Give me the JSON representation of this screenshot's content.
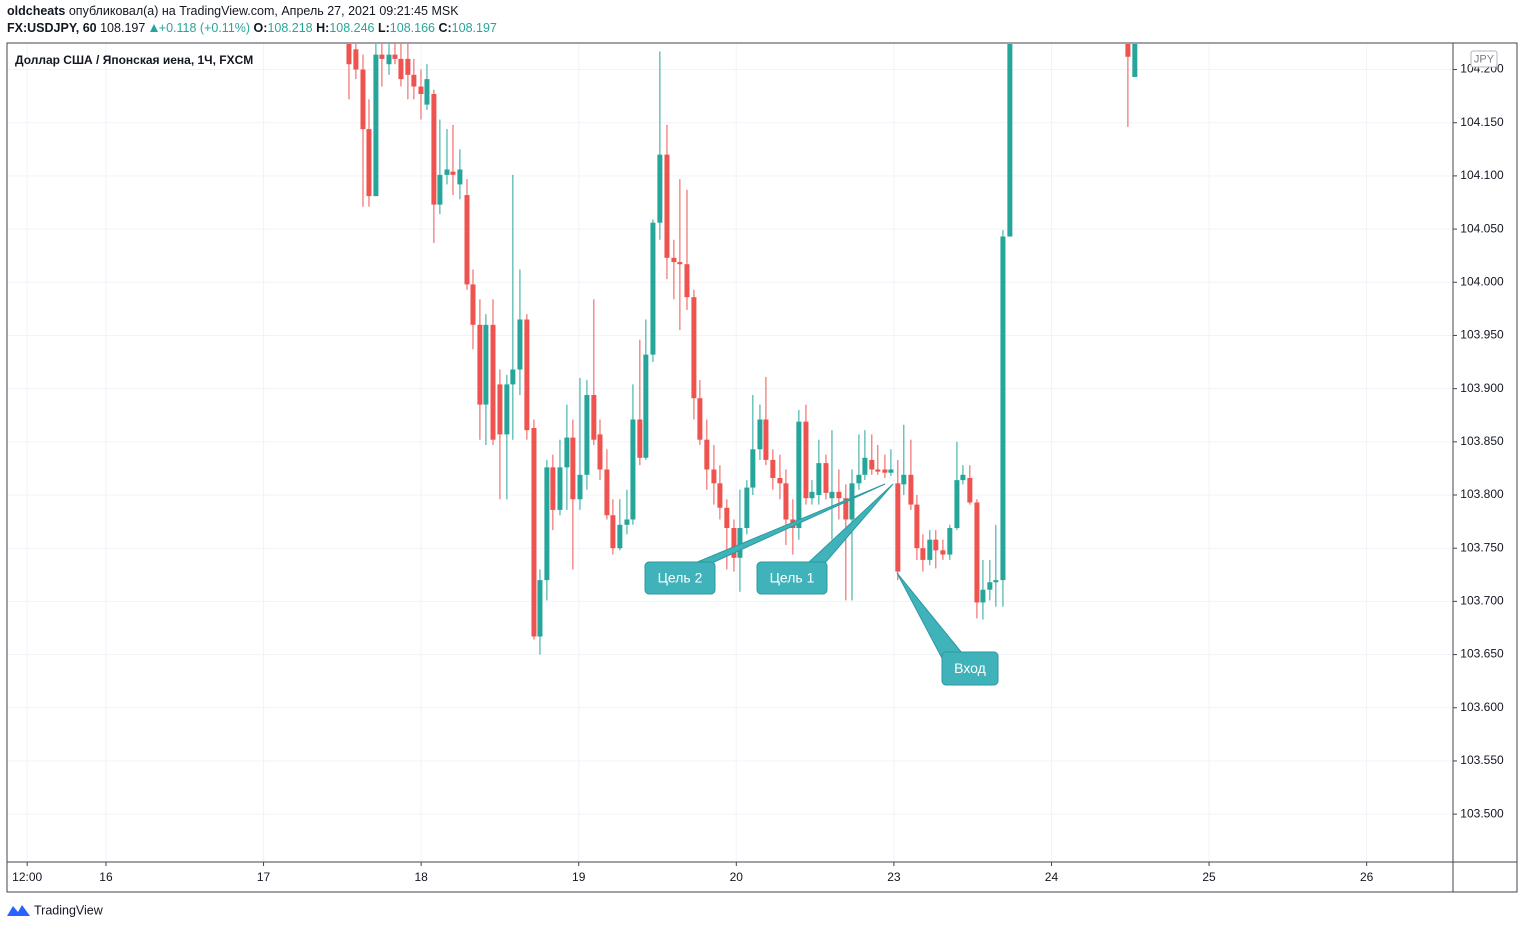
{
  "header": {
    "author": "oldcheats",
    "published": "опубликовал(а) на TradingView.com, Апрель 27, 2021 09:21:45 MSK",
    "symbol": "FX:USDJPY, 60",
    "last": "108.197",
    "change": "+0.118 (+0.11%)",
    "ohlc": [
      {
        "label": "O:",
        "value": "108.218"
      },
      {
        "label": "H:",
        "value": "108.246"
      },
      {
        "label": "L:",
        "value": "108.166"
      },
      {
        "label": "C:",
        "value": "108.197"
      }
    ]
  },
  "chart_data": {
    "type": "candlestick",
    "title": "Доллар США / Японская иена, 1Ч, FXCM",
    "currency": "JPY",
    "up_color": "#26a69a",
    "down_color": "#ef5350",
    "grid": true,
    "xlim": [
      15.372,
      24.548
    ],
    "ylim": [
      103.455,
      104.224
    ],
    "xticks": [
      {
        "value": 15.5,
        "label": "12:00"
      },
      16,
      17,
      18,
      19,
      20,
      {
        "value": 21,
        "label": "23"
      },
      {
        "value": 22,
        "label": "24"
      },
      {
        "value": 23,
        "label": "25"
      },
      {
        "value": 24,
        "label": "26"
      }
    ],
    "yticks": [
      {
        "value": 103.5,
        "label": "103.500"
      },
      {
        "value": 103.55,
        "label": "103.550"
      },
      {
        "value": 103.6,
        "label": "103.600"
      },
      {
        "value": 103.65,
        "label": "103.650"
      },
      {
        "value": 103.7,
        "label": "103.700"
      },
      {
        "value": 103.75,
        "label": "103.750"
      },
      {
        "value": 103.8,
        "label": "103.800"
      },
      {
        "value": 103.85,
        "label": "103.850"
      },
      {
        "value": 103.9,
        "label": "103.900"
      },
      {
        "value": 103.95,
        "label": "103.950"
      },
      {
        "value": 104.0,
        "label": "104.000"
      },
      {
        "value": 104.05,
        "label": "104.050"
      },
      {
        "value": 104.1,
        "label": "104.100"
      },
      {
        "value": 104.15,
        "label": "104.150"
      },
      {
        "value": 104.2,
        "label": "104.200"
      }
    ],
    "x": [
      17.542,
      17.586,
      17.631,
      17.669,
      17.713,
      17.751,
      17.796,
      17.834,
      17.872,
      17.916,
      17.954,
      17.999,
      18.037,
      18.081,
      18.119,
      18.164,
      18.202,
      18.246,
      18.291,
      18.329,
      18.373,
      18.411,
      18.456,
      18.5,
      18.544,
      18.582,
      18.627,
      18.671,
      18.716,
      18.754,
      18.798,
      18.836,
      18.881,
      18.925,
      18.963,
      19.008,
      19.052,
      19.096,
      19.135,
      19.179,
      19.217,
      19.261,
      19.306,
      19.344,
      19.388,
      19.426,
      19.471,
      19.515,
      19.56,
      19.604,
      19.642,
      19.687,
      19.731,
      19.769,
      19.813,
      19.858,
      19.896,
      19.94,
      19.985,
      20.023,
      20.067,
      20.105,
      20.15,
      20.188,
      20.232,
      20.277,
      20.315,
      20.359,
      20.397,
      20.442,
      20.48,
      20.524,
      20.569,
      20.607,
      20.651,
      20.695,
      20.734,
      20.778,
      20.816,
      20.86,
      20.898,
      20.943,
      20.981,
      21.025,
      21.063,
      21.108,
      21.146,
      21.184,
      21.228,
      21.266,
      21.311,
      21.355,
      21.4,
      21.438,
      21.482,
      21.527,
      21.565,
      21.609,
      21.647,
      21.692,
      21.736,
      22.485,
      22.529
    ],
    "open": [
      104.225,
      104.219,
      104.2,
      104.144,
      104.081,
      104.214,
      104.205,
      104.214,
      104.21,
      104.21,
      104.195,
      104.184,
      104.167,
      104.177,
      104.073,
      104.101,
      104.104,
      104.092,
      104.082,
      103.998,
      103.96,
      103.885,
      103.96,
      103.904,
      103.857,
      103.904,
      103.918,
      103.965,
      103.863,
      103.667,
      103.72,
      103.826,
      103.786,
      103.826,
      103.854,
      103.796,
      103.819,
      103.894,
      103.857,
      103.824,
      103.781,
      103.75,
      103.772,
      103.777,
      103.871,
      103.835,
      103.932,
      104.056,
      104.12,
      104.023,
      104.019,
      104.017,
      103.986,
      103.891,
      103.852,
      103.824,
      103.811,
      103.788,
      103.769,
      103.741,
      103.769,
      103.807,
      103.843,
      103.871,
      103.833,
      103.816,
      103.811,
      103.777,
      103.769,
      103.869,
      103.797,
      103.8,
      103.83,
      103.797,
      103.803,
      103.797,
      103.777,
      103.811,
      103.819,
      103.833,
      103.824,
      103.824,
      103.821,
      103.811,
      103.81,
      103.819,
      103.791,
      103.75,
      103.739,
      103.758,
      103.748,
      103.744,
      103.769,
      103.814,
      103.816,
      103.793,
      103.699,
      103.711,
      103.718,
      103.72,
      104.043,
      104.225,
      104.193
    ],
    "high": [
      104.238,
      104.225,
      104.214,
      104.172,
      104.225,
      104.225,
      104.225,
      104.225,
      104.225,
      104.225,
      104.21,
      104.2,
      104.205,
      104.181,
      104.153,
      104.144,
      104.148,
      104.125,
      104.097,
      104.012,
      103.984,
      103.97,
      103.984,
      103.918,
      103.913,
      104.101,
      104.012,
      103.97,
      103.871,
      103.73,
      103.833,
      103.838,
      103.852,
      103.885,
      103.871,
      103.91,
      103.908,
      103.984,
      103.871,
      103.843,
      103.796,
      103.796,
      103.805,
      103.904,
      103.946,
      103.965,
      104.059,
      104.217,
      104.148,
      104.04,
      104.097,
      104.087,
      103.993,
      103.908,
      103.871,
      103.847,
      103.828,
      103.796,
      103.777,
      103.805,
      103.814,
      103.894,
      103.885,
      103.911,
      103.843,
      103.838,
      103.824,
      103.796,
      103.88,
      103.885,
      103.814,
      103.852,
      103.838,
      103.861,
      103.824,
      103.81,
      103.824,
      103.857,
      103.861,
      103.857,
      103.847,
      103.838,
      103.843,
      103.833,
      103.866,
      103.852,
      103.8,
      103.763,
      103.767,
      103.767,
      103.758,
      103.772,
      103.85,
      103.828,
      103.828,
      103.796,
      103.739,
      103.739,
      103.772,
      104.049,
      104.247,
      104.238,
      104.238
    ],
    "low": [
      104.172,
      104.191,
      104.071,
      104.071,
      104.081,
      104.184,
      104.195,
      104.205,
      104.184,
      104.172,
      104.172,
      104.153,
      104.162,
      104.037,
      104.064,
      104.092,
      104.082,
      104.078,
      103.993,
      103.937,
      103.852,
      103.847,
      103.847,
      103.796,
      103.796,
      103.852,
      103.894,
      103.852,
      103.664,
      103.65,
      103.701,
      103.767,
      103.781,
      103.786,
      103.73,
      103.786,
      103.805,
      103.847,
      103.814,
      103.777,
      103.744,
      103.748,
      103.763,
      103.772,
      103.828,
      103.833,
      103.925,
      104.04,
      104.003,
      103.984,
      103.955,
      103.974,
      103.871,
      103.847,
      103.805,
      103.791,
      103.777,
      103.73,
      103.728,
      103.709,
      103.763,
      103.8,
      103.833,
      103.828,
      103.805,
      103.796,
      103.753,
      103.744,
      103.758,
      103.791,
      103.791,
      103.791,
      103.796,
      103.758,
      103.777,
      103.701,
      103.701,
      103.805,
      103.814,
      103.819,
      103.819,
      103.816,
      103.818,
      103.72,
      103.8,
      103.786,
      103.739,
      103.728,
      103.734,
      103.731,
      103.739,
      103.739,
      103.767,
      103.81,
      103.791,
      103.684,
      103.683,
      103.701,
      103.695,
      103.695,
      104.043,
      104.146,
      104.193
    ],
    "close": [
      104.205,
      104.2,
      104.144,
      104.081,
      104.214,
      104.21,
      104.214,
      104.21,
      104.191,
      104.195,
      104.184,
      104.177,
      104.191,
      104.073,
      104.101,
      104.106,
      104.101,
      104.106,
      103.998,
      103.96,
      103.885,
      103.96,
      103.852,
      103.857,
      103.904,
      103.918,
      103.965,
      103.861,
      103.667,
      103.72,
      103.826,
      103.786,
      103.826,
      103.854,
      103.796,
      103.819,
      103.894,
      103.852,
      103.824,
      103.781,
      103.75,
      103.772,
      103.777,
      103.871,
      103.835,
      103.932,
      104.056,
      104.12,
      104.023,
      104.019,
      104.017,
      103.986,
      103.891,
      103.852,
      103.824,
      103.811,
      103.788,
      103.769,
      103.741,
      103.769,
      103.807,
      103.843,
      103.871,
      103.833,
      103.816,
      103.811,
      103.777,
      103.769,
      103.869,
      103.797,
      103.803,
      103.83,
      103.802,
      103.803,
      103.797,
      103.777,
      103.811,
      103.819,
      103.835,
      103.824,
      103.822,
      103.821,
      103.824,
      103.728,
      103.819,
      103.791,
      103.75,
      103.739,
      103.758,
      103.748,
      103.744,
      103.769,
      103.814,
      103.819,
      103.793,
      103.699,
      103.711,
      103.718,
      103.72,
      104.043,
      104.238,
      104.212,
      104.225
    ],
    "annotations": [
      "Цель 2",
      "Цель 1",
      "Вход"
    ]
  },
  "footer": {
    "brand": "TradingView"
  }
}
